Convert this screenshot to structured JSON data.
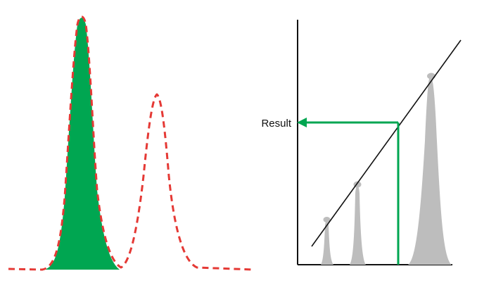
{
  "colors": {
    "green_fill": "#00a651",
    "red_dash": "#e53935",
    "gray_peak": "#bdbdbd",
    "axis": "#111111",
    "arrow": "#00a651"
  },
  "calibration": {
    "result_label": "Result"
  }
}
